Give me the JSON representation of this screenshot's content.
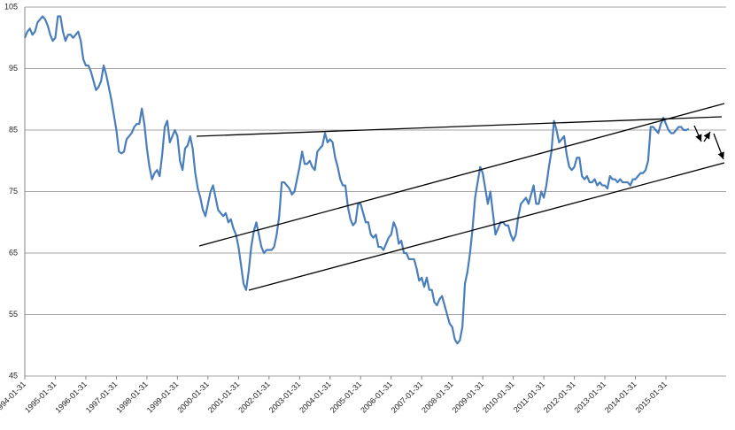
{
  "chart_data": {
    "type": "line",
    "categories": [
      "1994-01-31",
      null,
      null,
      null,
      null,
      null,
      null,
      null,
      null,
      null,
      null,
      null,
      "1995-01-31",
      null,
      null,
      null,
      null,
      null,
      null,
      null,
      null,
      null,
      null,
      null,
      "1996-01-31",
      null,
      null,
      null,
      null,
      null,
      null,
      null,
      null,
      null,
      null,
      null,
      "1997-01-31",
      null,
      null,
      null,
      null,
      null,
      null,
      null,
      null,
      null,
      null,
      null,
      "1998-01-31",
      null,
      null,
      null,
      null,
      null,
      null,
      null,
      null,
      null,
      null,
      null,
      "1999-01-31",
      null,
      null,
      null,
      null,
      null,
      null,
      null,
      null,
      null,
      null,
      null,
      "2000-01-31",
      null,
      null,
      null,
      null,
      null,
      null,
      null,
      null,
      null,
      null,
      null,
      "2001-01-31",
      null,
      null,
      null,
      null,
      null,
      null,
      null,
      null,
      null,
      null,
      null,
      "2002-01-31",
      null,
      null,
      null,
      null,
      null,
      null,
      null,
      null,
      null,
      null,
      null,
      "2003-01-31",
      null,
      null,
      null,
      null,
      null,
      null,
      null,
      null,
      null,
      null,
      null,
      "2004-01-31",
      null,
      null,
      null,
      null,
      null,
      null,
      null,
      null,
      null,
      null,
      null,
      "2005-01-31",
      null,
      null,
      null,
      null,
      null,
      null,
      null,
      null,
      null,
      null,
      null,
      "2006-01-31",
      null,
      null,
      null,
      null,
      null,
      null,
      null,
      null,
      null,
      null,
      null,
      "2007-01-31",
      null,
      null,
      null,
      null,
      null,
      null,
      null,
      null,
      null,
      null,
      null,
      "2008-01-31",
      null,
      null,
      null,
      null,
      null,
      null,
      null,
      null,
      null,
      null,
      null,
      "2009-01-31",
      null,
      null,
      null,
      null,
      null,
      null,
      null,
      null,
      null,
      null,
      null,
      "2010-01-31",
      null,
      null,
      null,
      null,
      null,
      null,
      null,
      null,
      null,
      null,
      null,
      "2011-01-31",
      null,
      null,
      null,
      null,
      null,
      null,
      null,
      null,
      null,
      null,
      null,
      "2012-01-31",
      null,
      null,
      null,
      null,
      null,
      null,
      null,
      null,
      null,
      null,
      null,
      "2013-01-31",
      null,
      null,
      null,
      null,
      null,
      null,
      null,
      null,
      null,
      null,
      null,
      "2014-01-31",
      null,
      null,
      null,
      null,
      null,
      null,
      null,
      null,
      null,
      null,
      null,
      "2015-01-31",
      null,
      null,
      null,
      null,
      null,
      null,
      null,
      null,
      null
    ],
    "values": [
      100,
      101,
      101.5,
      100.5,
      101,
      102.5,
      103,
      103.5,
      103,
      102,
      100.5,
      99.5,
      100,
      103.5,
      103.5,
      101,
      99.5,
      100.5,
      100.5,
      100,
      100.5,
      101,
      99.5,
      96.5,
      95.5,
      95.5,
      94.5,
      93,
      91.5,
      92,
      93,
      95.5,
      94,
      92,
      90,
      87.5,
      85,
      81.5,
      81.2,
      81.5,
      83.5,
      84,
      84.5,
      85.5,
      86,
      86,
      88.5,
      86,
      82,
      79,
      77,
      78,
      78.5,
      77.5,
      81,
      85.5,
      86.5,
      83,
      84,
      85,
      84,
      80,
      78.5,
      82,
      82.5,
      84,
      82,
      78,
      75.5,
      74,
      72,
      71,
      73,
      75,
      76,
      74,
      72,
      71.5,
      71,
      71.5,
      70,
      70.5,
      69,
      68,
      66,
      63,
      60,
      59,
      62,
      66,
      68.5,
      70,
      68,
      66,
      65,
      65.5,
      65.5,
      65.5,
      66,
      68,
      71,
      76.5,
      76.5,
      76,
      75.5,
      74.5,
      75,
      77,
      79,
      81.5,
      79.5,
      79.5,
      80,
      79,
      78.5,
      81.5,
      82,
      82.5,
      84.5,
      83,
      83.5,
      83,
      80.5,
      79,
      77,
      76,
      76,
      72.5,
      70.5,
      69.5,
      70,
      73,
      73,
      71.5,
      70,
      70,
      68,
      67.5,
      68,
      66,
      66,
      65.5,
      66.5,
      67.5,
      68,
      70,
      69,
      66.5,
      67,
      65,
      65,
      64,
      64,
      64,
      62.5,
      60.5,
      61,
      59.5,
      61,
      59,
      59,
      57,
      56.5,
      57.5,
      58,
      56.5,
      55,
      53.5,
      53,
      51,
      50.3,
      50.8,
      53,
      60,
      62,
      65,
      69,
      74,
      76.5,
      79,
      78,
      75.5,
      73,
      75,
      71.5,
      68,
      69,
      70,
      70,
      69.5,
      69.5,
      68,
      67,
      68,
      71,
      73,
      73.5,
      74,
      73,
      74.5,
      76,
      73,
      73,
      75,
      74,
      76,
      79,
      81.5,
      86.5,
      85,
      83,
      83.5,
      84,
      81,
      79,
      78.5,
      79,
      80.5,
      80.5,
      77.5,
      77,
      77.5,
      76.5,
      76.5,
      77,
      76,
      76.5,
      76,
      76,
      75.5,
      77.5,
      77,
      77,
      76.5,
      77,
      76.5,
      76.5,
      76.5,
      76,
      77,
      77,
      77.5,
      78,
      78,
      78.5,
      80,
      85.5,
      85.5,
      85,
      84.5,
      86,
      87,
      86,
      85,
      84.5,
      84.5,
      85,
      85.5,
      85.5,
      85,
      85,
      85.2
    ],
    "color": "#4a7ebb",
    "ylim": [
      45,
      105
    ],
    "yticks": [
      45,
      55,
      65,
      75,
      85,
      95,
      105
    ],
    "grid": true
  }
}
